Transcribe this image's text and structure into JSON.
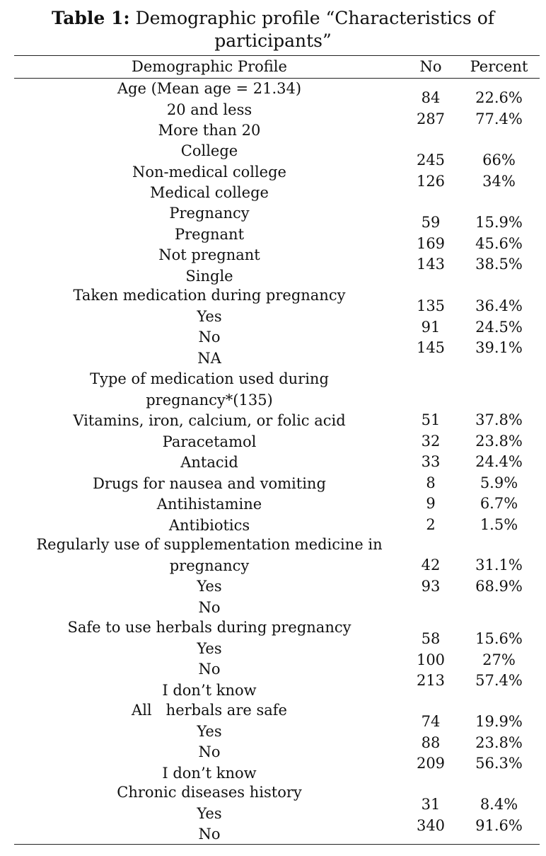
{
  "caption": {
    "label": "Table 1:",
    "text": "Demographic profile “Characteristics of",
    "text_line2": "participants”"
  },
  "headers": {
    "profile": "Demographic Profile",
    "no": "No",
    "percent": "Percent"
  },
  "sections": [
    {
      "profile_lines": [
        "Age (Mean age = 21.34)",
        "20 and less",
        "More than 20"
      ],
      "no": [
        "84",
        "287"
      ],
      "percent": [
        "22.6%",
        "77.4%"
      ]
    },
    {
      "profile_lines": [
        "College",
        "Non-medical college",
        "Medical college"
      ],
      "no": [
        "245",
        "126"
      ],
      "percent": [
        "66%",
        "34%"
      ]
    },
    {
      "profile_lines": [
        "Pregnancy",
        "Pregnant",
        "Not pregnant",
        "Single"
      ],
      "no": [
        "59",
        "169",
        "143"
      ],
      "percent": [
        "15.9%",
        "45.6%",
        "38.5%"
      ]
    },
    {
      "profile_lines": [
        "Taken medication during pregnancy",
        "Yes",
        "No",
        "NA"
      ],
      "no": [
        "135",
        "91",
        "145"
      ],
      "percent": [
        "36.4%",
        "24.5%",
        "39.1%"
      ]
    },
    {
      "profile_lines": [
        "Type of medication used during",
        "pregnancy*(135)",
        "Vitamins, iron, calcium, or folic acid",
        "Paracetamol",
        "Antacid",
        "Drugs for nausea and vomiting",
        "Antihistamine",
        "Antibiotics"
      ],
      "no": [
        "51",
        "32",
        "33",
        "8",
        "9",
        "2"
      ],
      "percent": [
        "37.8%",
        "23.8%",
        "24.4%",
        "5.9%",
        "6.7%",
        "1.5%"
      ]
    },
    {
      "profile_lines": [
        "Regularly use of supplementation medicine in",
        "pregnancy",
        "Yes",
        "No"
      ],
      "no": [
        "42",
        "93"
      ],
      "percent": [
        "31.1%",
        "68.9%"
      ]
    },
    {
      "profile_lines": [
        "Safe to use herbals during pregnancy",
        "Yes",
        "No",
        "I don’t know"
      ],
      "no": [
        "58",
        "100",
        "213"
      ],
      "percent": [
        "15.6%",
        "27%",
        "57.4%"
      ]
    },
    {
      "profile_lines": [
        "All   herbals are safe",
        "Yes",
        "No",
        "I don’t know"
      ],
      "no": [
        "74",
        "88",
        "209"
      ],
      "percent": [
        "19.9%",
        "23.8%",
        "56.3%"
      ]
    },
    {
      "profile_lines": [
        "Chronic diseases history",
        "Yes",
        "No"
      ],
      "no": [
        "31",
        "340"
      ],
      "percent": [
        "8.4%",
        "91.6%"
      ]
    }
  ]
}
